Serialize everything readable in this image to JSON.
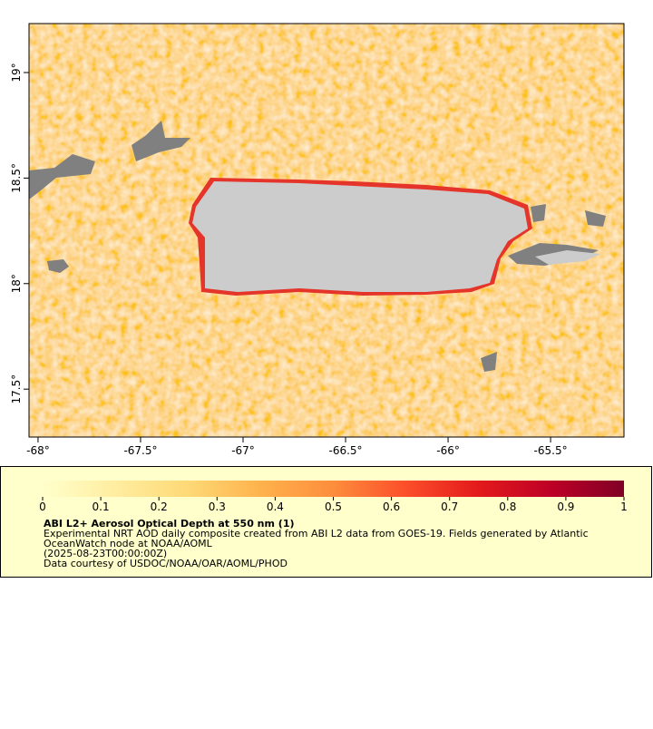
{
  "map": {
    "xlim": [
      -68.044,
      -65.142
    ],
    "ylim": [
      17.273,
      19.232
    ],
    "xticks": [
      {
        "value": -68,
        "label": "-68°"
      },
      {
        "value": -67.5,
        "label": "-67.5°"
      },
      {
        "value": -67,
        "label": "-67°"
      },
      {
        "value": -66.5,
        "label": "-66.5°"
      },
      {
        "value": -66,
        "label": "-66°"
      },
      {
        "value": -65.5,
        "label": "-65.5°"
      }
    ],
    "yticks": [
      {
        "value": 17.5,
        "label": "17.5°"
      },
      {
        "value": 18,
        "label": "18°"
      },
      {
        "value": 18.5,
        "label": "18.5°"
      },
      {
        "value": 19,
        "label": "19°"
      }
    ]
  },
  "legend": {
    "lim": [
      0,
      1
    ],
    "ticks": [
      0,
      0.1,
      0.2,
      0.3,
      0.4,
      0.5,
      0.6,
      0.7,
      0.8,
      0.9,
      1
    ],
    "colors": [
      "#ffffcc",
      "#ffeda0",
      "#fed976",
      "#feb24c",
      "#fd8d3c",
      "#fc4e2a",
      "#e31a1c",
      "#bd0026",
      "#800026"
    ],
    "title": "ABI L2+ Aerosol Optical Depth at 550 nm (1)",
    "lines": [
      "Experimental NRT AOD daily composite created from ABI L2 data from GOES-19. Fields generated by Atlantic",
      "OceanWatch node at NOAA/AOML",
      "(2025-08-23T00:00:00Z)",
      "Data courtesy of USDOC/NOAA/OAR/AOML/PHOD"
    ]
  }
}
